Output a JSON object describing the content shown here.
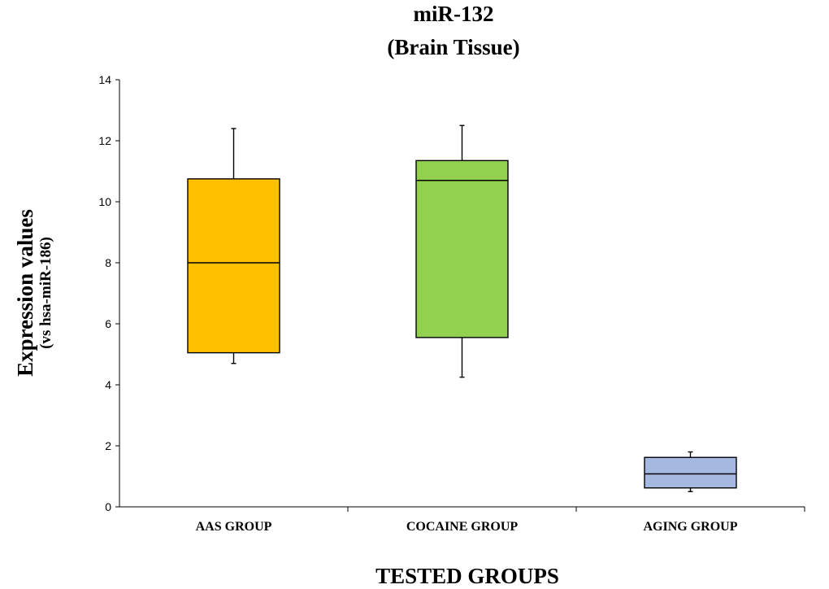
{
  "chart_data": {
    "type": "box",
    "title": "miR-132",
    "subtitle": "(Brain Tissue)",
    "xlabel": "TESTED GROUPS",
    "ylabel": "Expression values",
    "ylabel_sub": "(vs hsa-miR-186)",
    "ylim": [
      0,
      14
    ],
    "yticks": [
      0,
      2,
      4,
      6,
      8,
      10,
      12,
      14
    ],
    "grid": false,
    "legend": "none",
    "categories": [
      "AAS GROUP",
      "COCAINE GROUP",
      "AGING GROUP"
    ],
    "boxes": [
      {
        "category": "AAS GROUP",
        "whisker_low": 4.7,
        "q1": 5.05,
        "median": 8.0,
        "q3": 10.75,
        "whisker_high": 12.4,
        "color": "#FFC000"
      },
      {
        "category": "COCAINE GROUP",
        "whisker_low": 4.25,
        "q1": 5.55,
        "median": 10.7,
        "q3": 11.35,
        "whisker_high": 12.5,
        "color": "#92D050"
      },
      {
        "category": "AGING GROUP",
        "whisker_low": 0.5,
        "q1": 0.62,
        "median": 1.08,
        "q3": 1.62,
        "whisker_high": 1.8,
        "color": "#A5B8E0"
      }
    ]
  }
}
